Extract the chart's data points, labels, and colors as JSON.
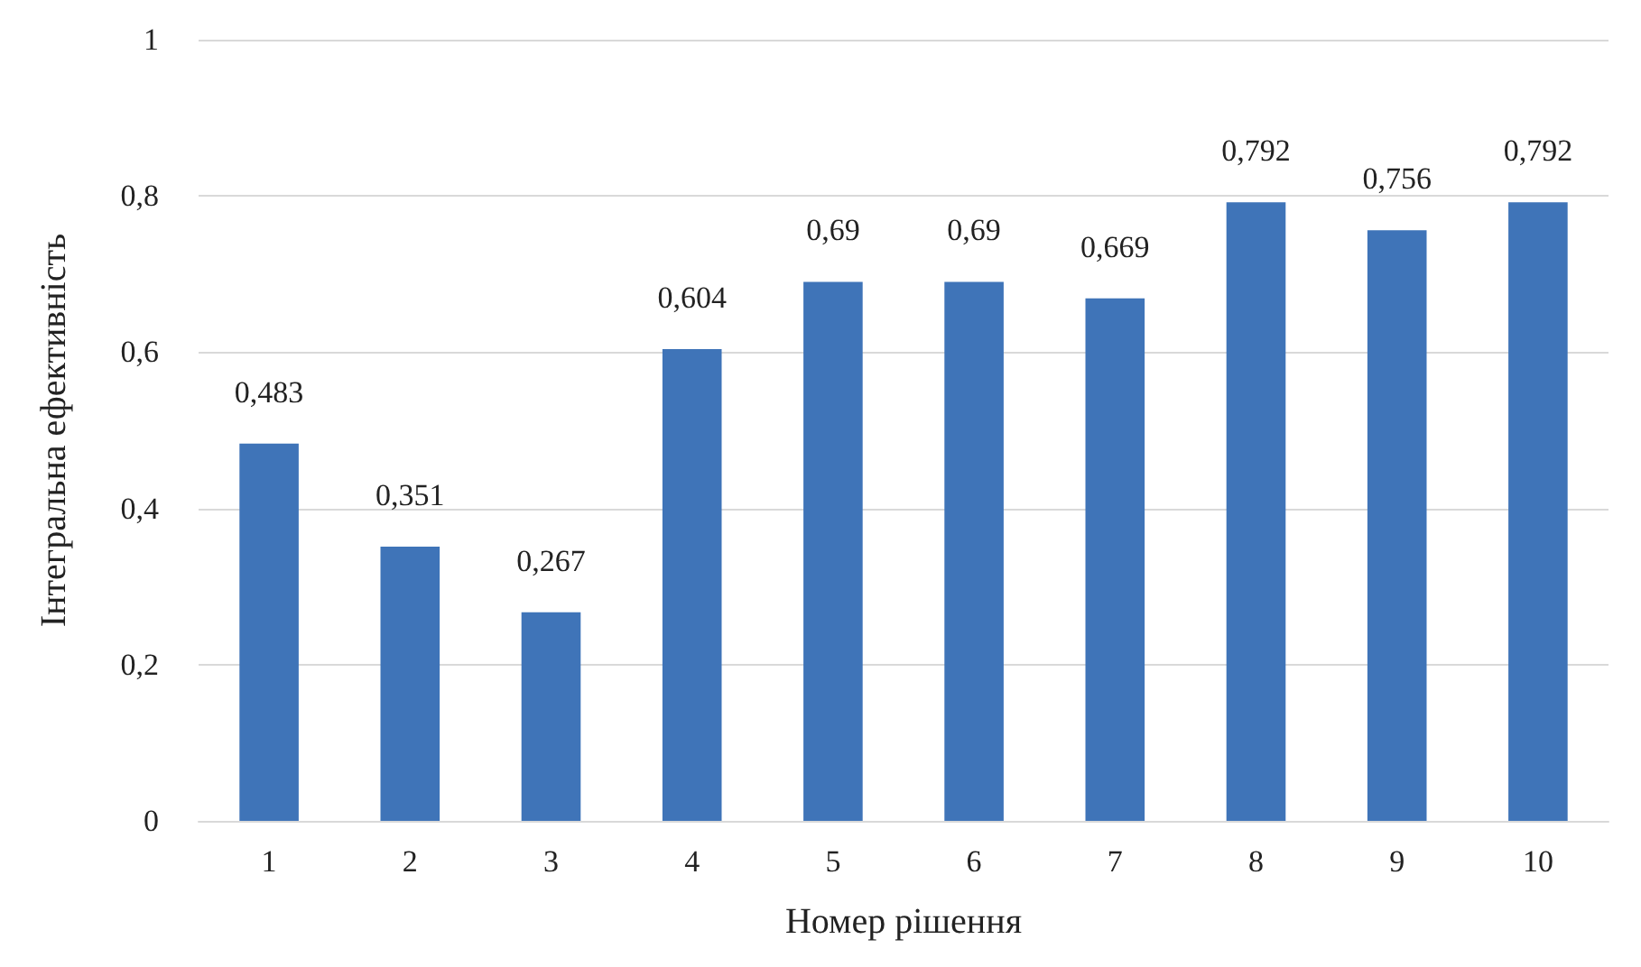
{
  "chart_data": {
    "type": "bar",
    "xlabel": "Номер рішення",
    "ylabel": "Інтегральна ефективність",
    "categories": [
      "1",
      "2",
      "3",
      "4",
      "5",
      "6",
      "7",
      "8",
      "9",
      "10"
    ],
    "values": [
      0.483,
      0.351,
      0.267,
      0.604,
      0.69,
      0.69,
      0.669,
      0.792,
      0.756,
      0.792
    ],
    "value_labels": [
      "0,483",
      "0,351",
      "0,267",
      "0,604",
      "0,69",
      "0,69",
      "0,669",
      "0,792",
      "0,756",
      "0,792"
    ],
    "color": "#3f74b8",
    "ylim": [
      0,
      1
    ],
    "yticks": [
      0,
      {
        "value": 0.2,
        "label": "0,2"
      },
      {
        "value": 0.4,
        "label": "0,4"
      },
      {
        "value": 0.6,
        "label": "0,6"
      },
      {
        "value": 0.8,
        "label": "0,8"
      },
      1
    ],
    "grid": "y"
  }
}
